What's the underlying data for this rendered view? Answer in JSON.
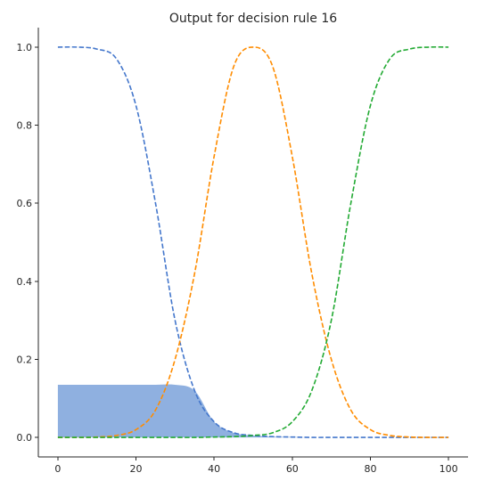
{
  "chart_data": {
    "type": "line",
    "title": "Output for decision rule 16",
    "xlabel": "",
    "ylabel": "",
    "xlim": [
      -5,
      105
    ],
    "ylim": [
      -0.05,
      1.05
    ],
    "xticks": [
      "0",
      "20",
      "40",
      "60",
      "80",
      "100"
    ],
    "yticks": [
      "0.0",
      "0.2",
      "0.4",
      "0.6",
      "0.8",
      "1.0"
    ],
    "grid": false,
    "legend": "none",
    "x": [
      0,
      5,
      10,
      15,
      20,
      25,
      30,
      35,
      40,
      45,
      50,
      55,
      60,
      65,
      70,
      75,
      80,
      85,
      90,
      95,
      100
    ],
    "series": [
      {
        "color": "#4477cc",
        "style": "dashed",
        "values": [
          1.0,
          1.0,
          0.995,
          0.97,
          0.85,
          0.6,
          0.3,
          0.12,
          0.04,
          0.012,
          0.005,
          0.002,
          0.001,
          0.0,
          0.0,
          0.0,
          0.0,
          0.0,
          0.0,
          0.0,
          0.0
        ]
      },
      {
        "color": "#ff8c00",
        "style": "dashed",
        "values": [
          0.0,
          0.0,
          0.001,
          0.005,
          0.02,
          0.07,
          0.2,
          0.42,
          0.72,
          0.95,
          1.0,
          0.95,
          0.72,
          0.42,
          0.2,
          0.07,
          0.02,
          0.005,
          0.001,
          0.0,
          0.0
        ]
      },
      {
        "color": "#22aa33",
        "style": "dashed",
        "values": [
          0.0,
          0.0,
          0.0,
          0.0,
          0.0,
          0.0,
          0.0,
          0.0,
          0.001,
          0.002,
          0.005,
          0.012,
          0.04,
          0.12,
          0.3,
          0.6,
          0.85,
          0.97,
          0.995,
          1.0,
          1.0
        ]
      }
    ],
    "fill_area": {
      "color": "#8fb0e0",
      "cap": 0.135,
      "underlying_series": 0,
      "x_start": 0
    }
  }
}
